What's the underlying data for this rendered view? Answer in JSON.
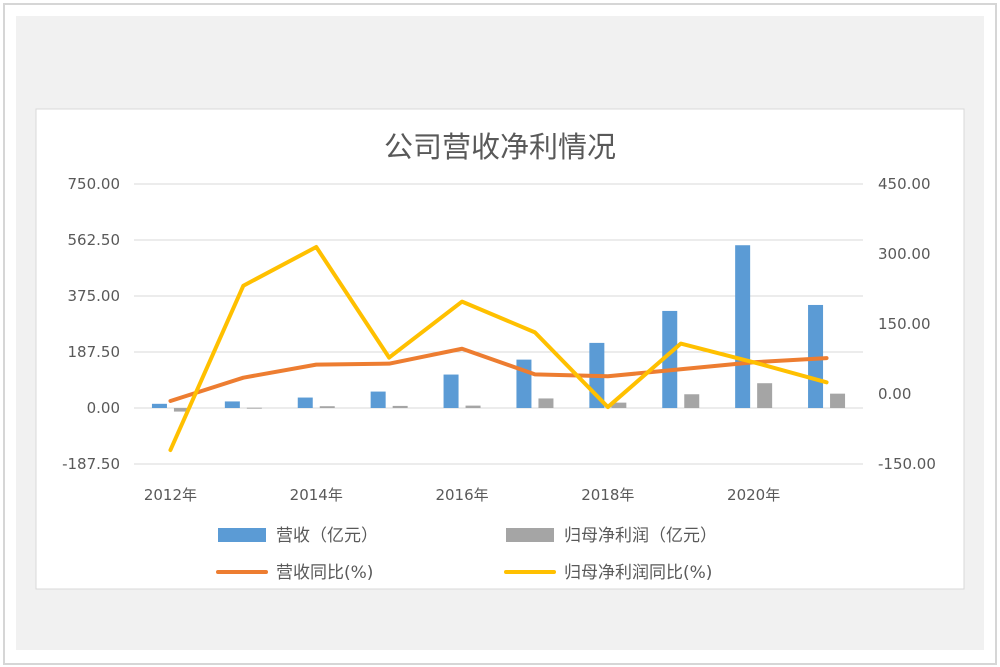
{
  "chart_data": {
    "type": "bar+line",
    "title": "公司营收净利情况",
    "categories": [
      "2012年",
      "2013年",
      "2014年",
      "2015年",
      "2016年",
      "2017年",
      "2018年",
      "2019年",
      "2020年",
      "2021年"
    ],
    "x_tick_labels": [
      "2012年",
      "",
      "2014年",
      "",
      "2016年",
      "",
      "2018年",
      "",
      "2020年",
      ""
    ],
    "y_left": {
      "min": -187.5,
      "max": 750,
      "ticks": [
        "750.00",
        "562.50",
        "375.00",
        "187.50",
        "0.00",
        "-187.50"
      ]
    },
    "y_right": {
      "min": -150,
      "max": 450,
      "ticks": [
        "450.00",
        "300.00",
        "150.00",
        "0.00",
        "-150.00"
      ]
    },
    "series": [
      {
        "name": "营收（亿元）",
        "type": "bar",
        "axis": "left",
        "color": "#5b9bd5",
        "values": [
          14,
          22,
          35,
          55,
          112,
          162,
          218,
          325,
          545,
          345
        ]
      },
      {
        "name": "归母净利润（亿元）",
        "type": "bar",
        "axis": "left",
        "color": "#a5a5a5",
        "values": [
          -12,
          1,
          6,
          7,
          8,
          32,
          18,
          46,
          83,
          48
        ]
      },
      {
        "name": "营收同比(%)",
        "type": "line",
        "axis": "right",
        "color": "#ed7d31",
        "values": [
          -15,
          35,
          63,
          65,
          97,
          42,
          38,
          53,
          68,
          77
        ]
      },
      {
        "name": "归母净利润同比(%)",
        "type": "line",
        "axis": "right",
        "color": "#ffc000",
        "values": [
          -120,
          232,
          315,
          78,
          198,
          132,
          -28,
          108,
          68,
          25
        ]
      }
    ],
    "grid": true,
    "legend_position": "bottom"
  }
}
